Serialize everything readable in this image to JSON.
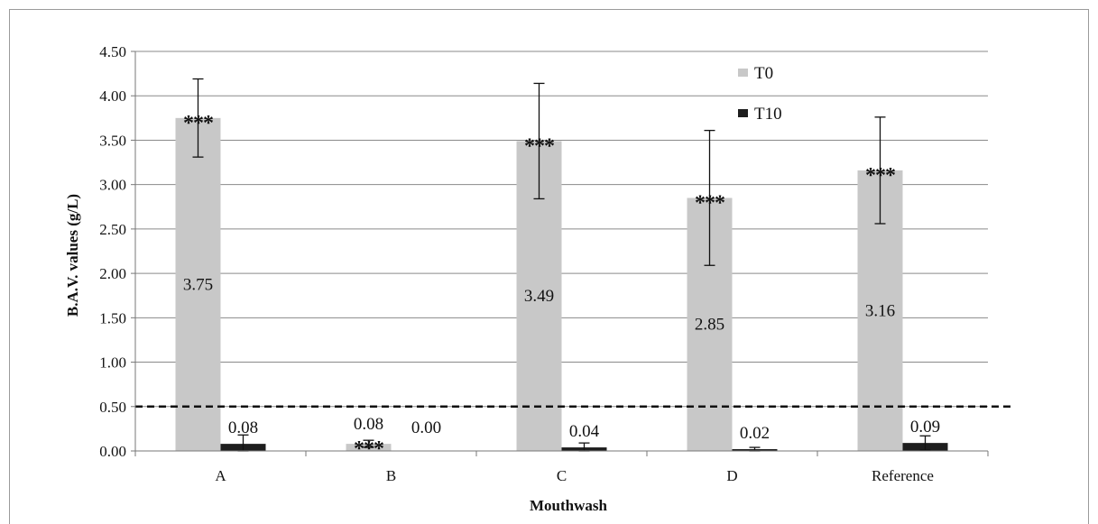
{
  "chart_data": {
    "type": "bar",
    "title": "",
    "xlabel": "Mouthwash",
    "ylabel": "B.A.V. values (g/L)",
    "ylim": [
      0,
      4.5
    ],
    "yticks": [
      "0.00",
      "0.50",
      "1.00",
      "1.50",
      "2.00",
      "2.50",
      "3.00",
      "3.50",
      "4.00",
      "4.50"
    ],
    "categories": [
      "A",
      "B",
      "C",
      "D",
      "Reference"
    ],
    "series": [
      {
        "name": "T0",
        "color": "#c8c8c8",
        "values": [
          3.75,
          0.08,
          3.49,
          2.85,
          3.16
        ],
        "labels": [
          "3.75",
          "0.08",
          "3.49",
          "2.85",
          "3.16"
        ],
        "error": [
          0.44,
          0.04,
          0.65,
          0.76,
          0.6
        ],
        "significance": [
          "***",
          "***",
          "***",
          "***",
          "***"
        ]
      },
      {
        "name": "T10",
        "color": "#1e1e1e",
        "values": [
          0.08,
          0.0,
          0.04,
          0.02,
          0.09
        ],
        "labels": [
          "0.08",
          "0.00",
          "0.04",
          "0.02",
          "0.09"
        ],
        "error": [
          0.1,
          0.0,
          0.05,
          0.02,
          0.08
        ]
      }
    ],
    "threshold": 0.5,
    "grid": true,
    "legend_position": "top-right"
  }
}
